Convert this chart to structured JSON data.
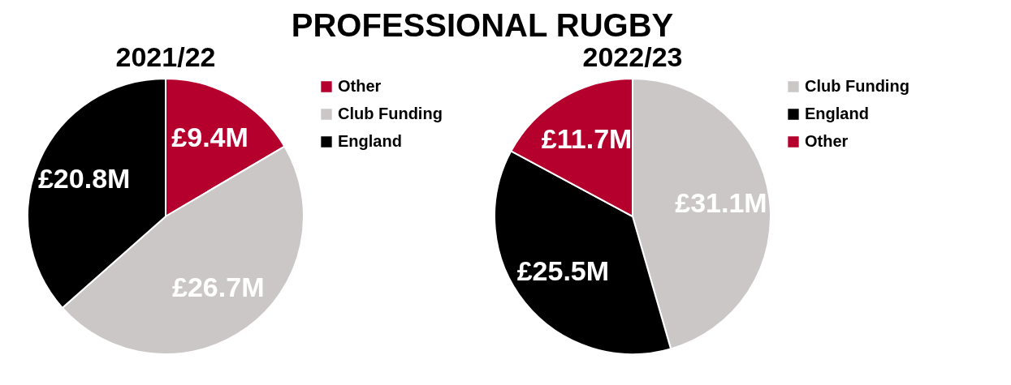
{
  "chart_data": [
    {
      "type": "other",
      "title": "PROFESSIONAL RUGBY"
    },
    {
      "type": "pie",
      "title": "2021/22",
      "categories": [
        "Other",
        "Club Funding",
        "England"
      ],
      "values": [
        9.4,
        26.7,
        20.8
      ],
      "colors": [
        "#b5002d",
        "#cbc7c6",
        "#000000"
      ],
      "value_labels": [
        "£9.4M",
        "£26.7M",
        "£20.8M"
      ],
      "legend": "right"
    },
    {
      "type": "pie",
      "title": "2022/23",
      "categories": [
        "Club Funding",
        "England",
        "Other"
      ],
      "values": [
        31.1,
        25.5,
        11.7
      ],
      "colors": [
        "#cbc7c6",
        "#000000",
        "#b5002d"
      ],
      "value_labels": [
        "£31.1M",
        "£25.5M",
        "£11.7M"
      ],
      "legend": "right"
    }
  ]
}
